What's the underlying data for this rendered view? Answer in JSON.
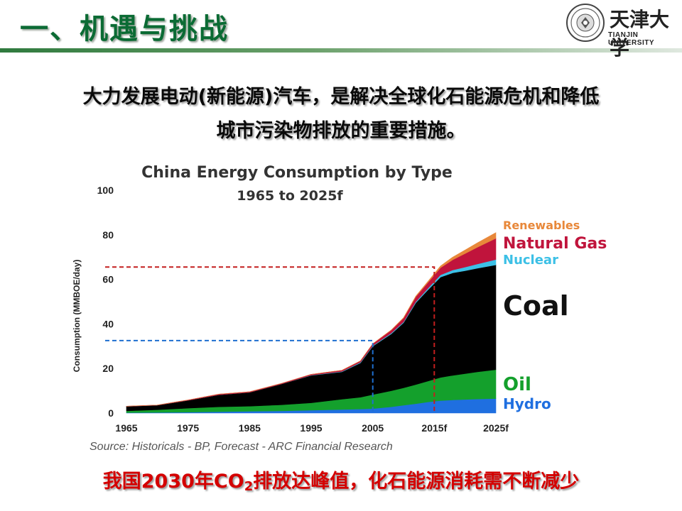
{
  "header": {
    "title": "一、机遇与挑战",
    "logo": {
      "chinese": "天津大学",
      "english": "TIANJIN UNIVERSITY",
      "seal_icon": "university-seal-icon"
    }
  },
  "headline": {
    "line1": "大力发展电动(新能源)汽车，是解决全球化石能源危机和降低",
    "line2": "城市污染物排放的重要措施。"
  },
  "chart_data": {
    "type": "area",
    "stacked": true,
    "title": "China Energy Consumption by Type",
    "subtitle": "1965 to 2025f",
    "ylabel": "Consumption (MMBOE/day)",
    "xlabel": "",
    "ylim": [
      0,
      100
    ],
    "yticks": [
      0,
      20,
      40,
      60,
      80,
      100
    ],
    "xticks": [
      "1965",
      "1975",
      "1985",
      "1995",
      "2005",
      "2015f",
      "2025f"
    ],
    "x": [
      1965,
      1970,
      1975,
      1980,
      1985,
      1990,
      1995,
      2000,
      2003,
      2005,
      2008,
      2010,
      2012,
      2014,
      2016,
      2018,
      2020,
      2022,
      2025
    ],
    "series": [
      {
        "name": "Hydro",
        "color": "#1f6fe0",
        "values": [
          0.2,
          0.3,
          0.4,
          0.6,
          0.8,
          1.0,
          1.3,
          1.6,
          1.8,
          2.0,
          2.8,
          3.5,
          4.2,
          5.0,
          5.6,
          5.9,
          6.1,
          6.3,
          6.5
        ]
      },
      {
        "name": "Oil",
        "color": "#14a02c",
        "values": [
          0.8,
          1.2,
          1.8,
          2.2,
          2.3,
          2.7,
          3.3,
          4.6,
          5.3,
          6.3,
          7.2,
          7.8,
          8.6,
          9.4,
          10.4,
          11.0,
          11.6,
          12.2,
          13.0
        ]
      },
      {
        "name": "Coal",
        "color": "#000000",
        "values": [
          2.0,
          2.0,
          3.5,
          5.4,
          6.2,
          9.2,
          12.3,
          12.3,
          15.4,
          21.7,
          25.5,
          29.2,
          36.7,
          41.0,
          45.0,
          46.0,
          46.2,
          46.5,
          47.0
        ]
      },
      {
        "name": "Nuclear",
        "color": "#3cc0e6",
        "values": [
          0,
          0,
          0,
          0,
          0,
          0,
          0.1,
          0.2,
          0.3,
          0.3,
          0.4,
          0.4,
          0.5,
          0.7,
          1.0,
          1.3,
          1.6,
          1.9,
          2.4
        ]
      },
      {
        "name": "Natural Gas",
        "color": "#c0143c",
        "values": [
          0.1,
          0.1,
          0.2,
          0.3,
          0.3,
          0.3,
          0.4,
          0.5,
          0.6,
          0.8,
          1.3,
          1.7,
          2.2,
          2.6,
          3.2,
          4.6,
          6.1,
          7.5,
          9.5
        ]
      },
      {
        "name": "Renewables",
        "color": "#e8883a",
        "values": [
          0,
          0,
          0,
          0,
          0,
          0,
          0,
          0,
          0,
          0,
          0.1,
          0.2,
          0.3,
          0.5,
          0.8,
          1.2,
          1.6,
          2.0,
          2.6
        ]
      }
    ],
    "annotations": [
      {
        "type": "dashed-guide",
        "color": "#1f6fd0",
        "x": 2005,
        "y": 32.5
      },
      {
        "type": "dashed-guide",
        "color": "#c41e1e",
        "x": 2015,
        "y": 65.5
      }
    ],
    "source": "Source: Historicals - BP, Forecast - ARC Financial Research"
  },
  "footer": {
    "before": "我国2030年CO",
    "sub": "2",
    "after": "排放达峰值，化石能源消耗需不断减少"
  }
}
